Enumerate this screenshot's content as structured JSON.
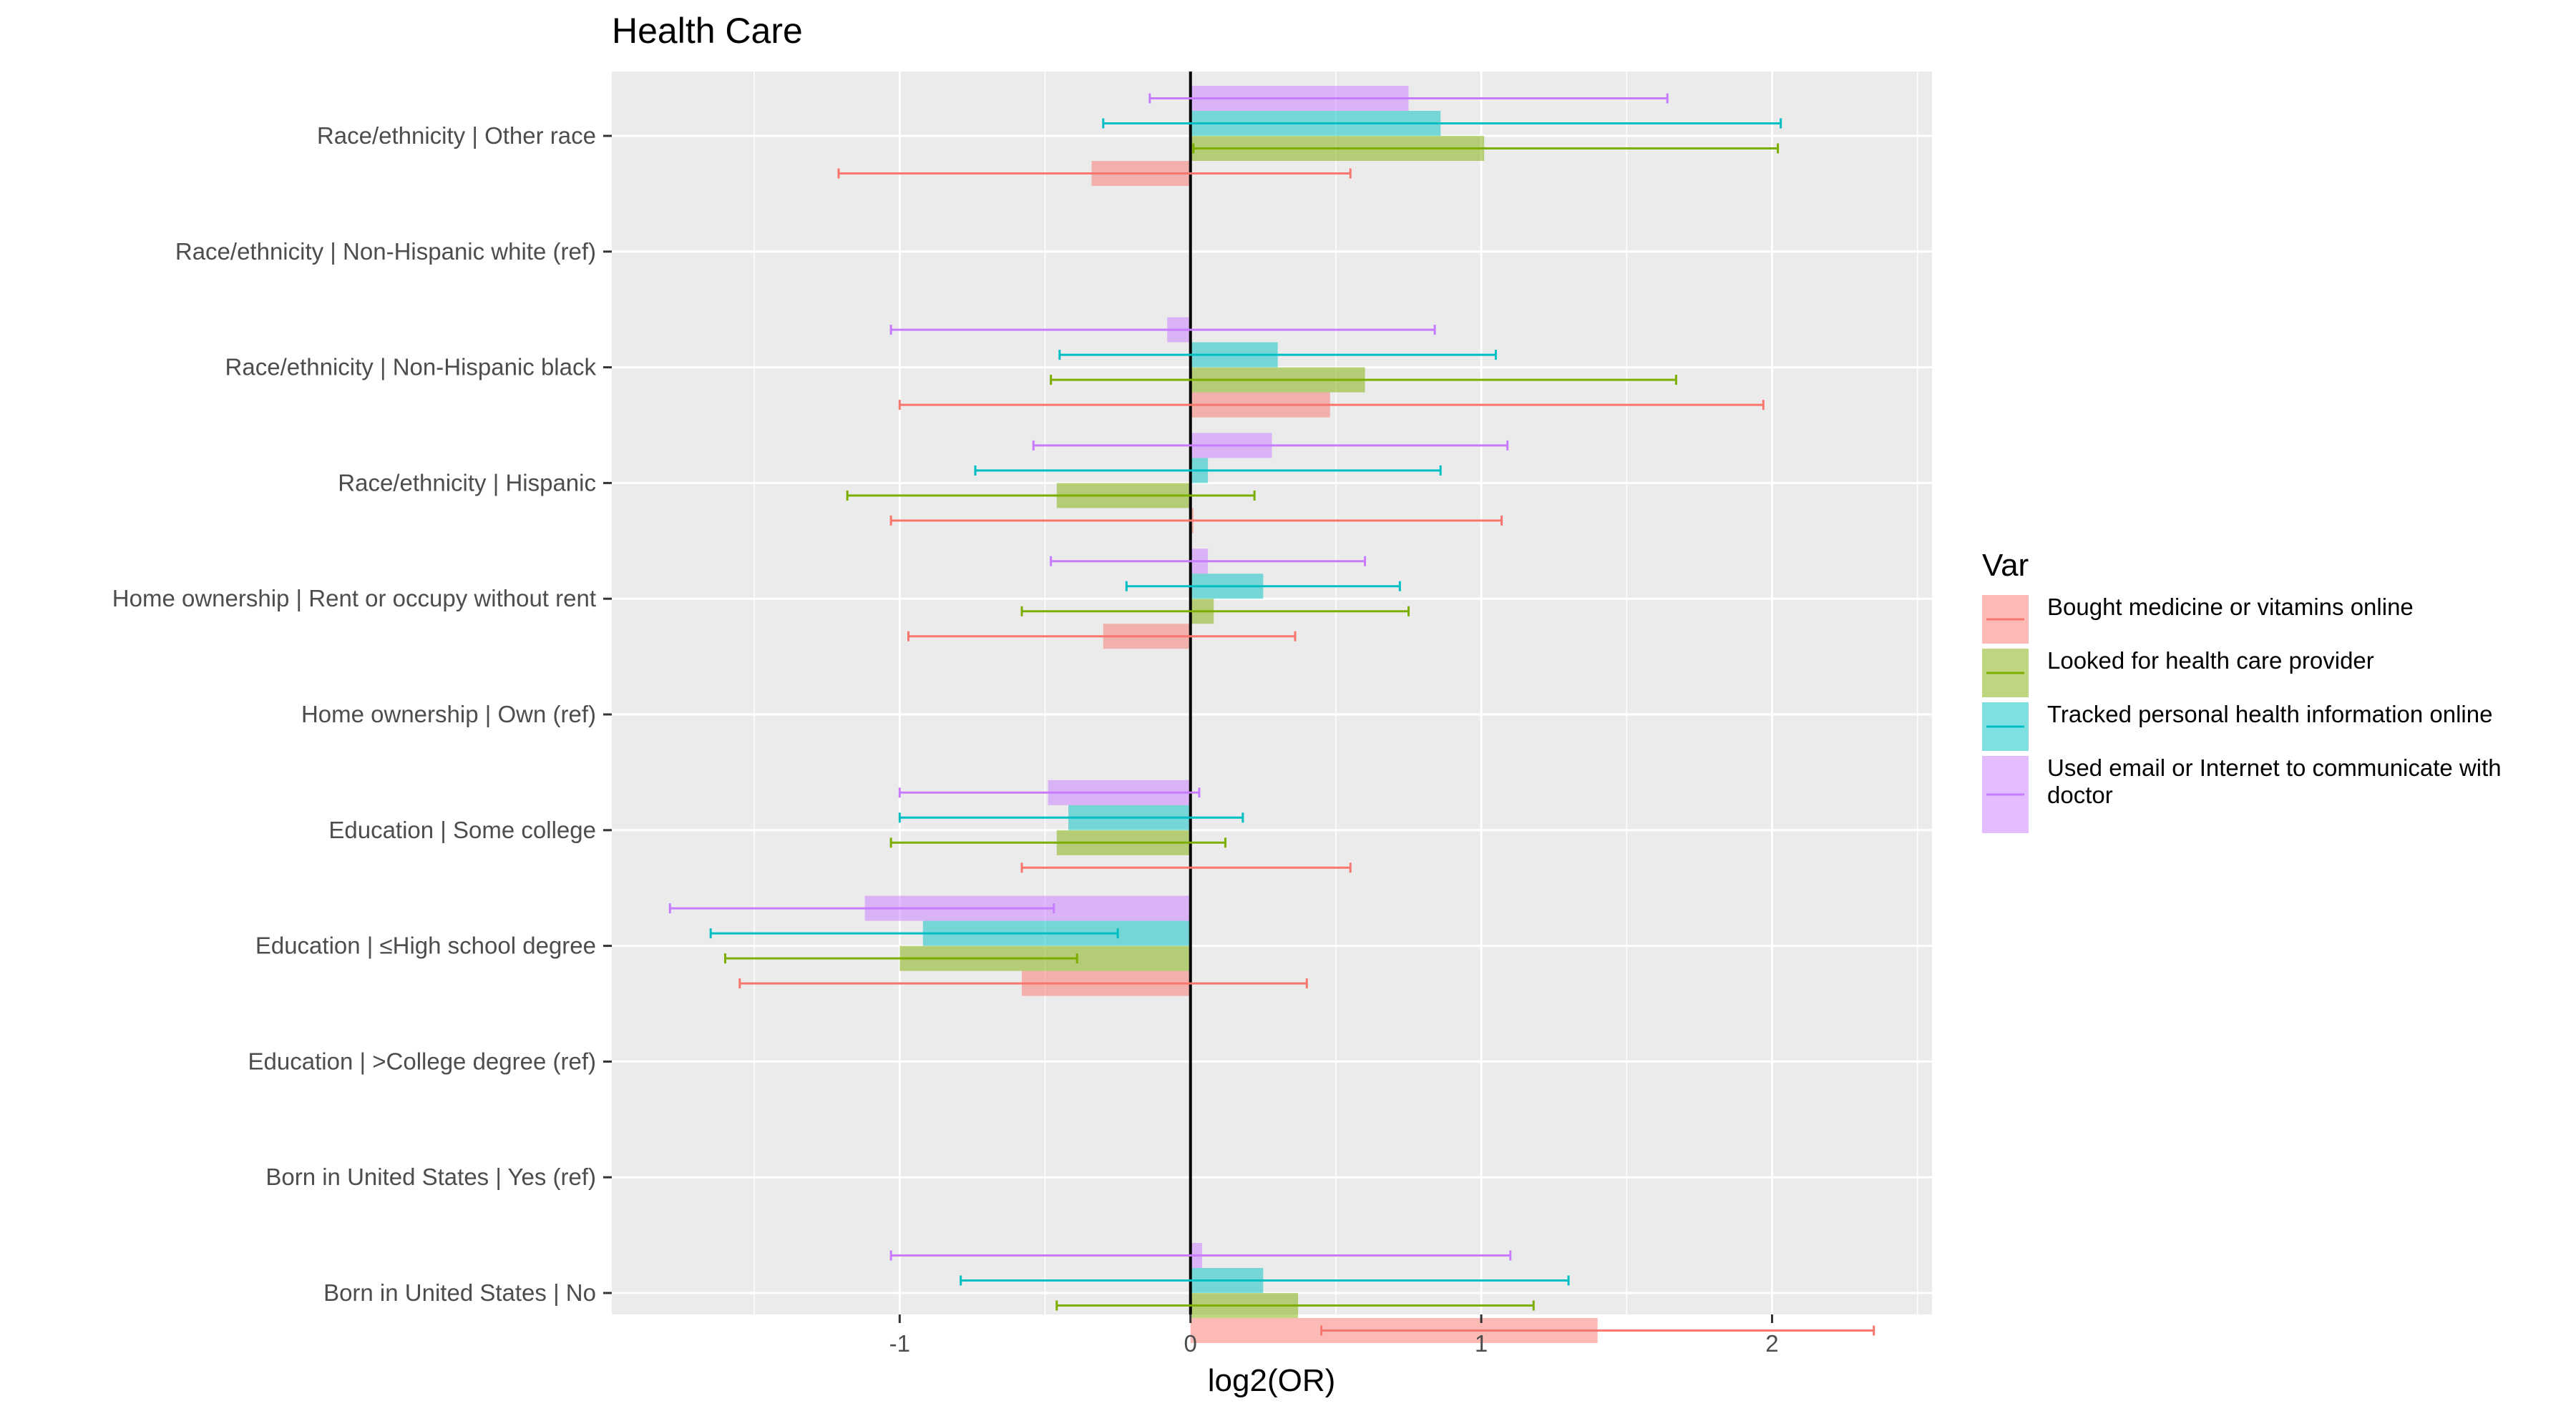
{
  "chart_data": {
    "type": "bar",
    "orientation": "horizontal",
    "title": "Health Care",
    "xlabel": "log2(OR)",
    "ylabel": "",
    "xlim": [
      -1.99,
      2.55
    ],
    "xticks": [
      "-1",
      "0",
      "1",
      "2"
    ],
    "grid": true,
    "legend_position": "right",
    "legend_title": "Var",
    "categories": [
      "Race/ethnicity | Other race",
      "Race/ethnicity | Non-Hispanic white (ref)",
      "Race/ethnicity | Non-Hispanic black",
      "Race/ethnicity | Hispanic",
      "Home ownership | Rent or occupy without rent",
      "Home ownership | Own (ref)",
      "Education | Some college",
      "Education | ≤High school degree",
      "Education | >College degree (ref)",
      "Born in United States | Yes (ref)",
      "Born in United States | No"
    ],
    "series": [
      {
        "name": "Bought medicine or vitamins online",
        "color": "#F8766D",
        "values": [
          -0.34,
          null,
          0.48,
          0.01,
          -0.3,
          null,
          0.0,
          -0.58,
          null,
          null,
          1.4
        ],
        "ci_low": [
          -1.21,
          null,
          -1.0,
          -1.03,
          -0.97,
          null,
          -0.58,
          -1.55,
          null,
          null,
          0.45
        ],
        "ci_high": [
          0.55,
          null,
          1.97,
          1.07,
          0.36,
          null,
          0.55,
          0.4,
          null,
          null,
          2.35
        ]
      },
      {
        "name": "Looked for health care provider",
        "color": "#7CAE00",
        "values": [
          1.01,
          null,
          0.6,
          -0.46,
          0.08,
          null,
          -0.46,
          -1.0,
          null,
          null,
          0.37
        ],
        "ci_low": [
          0.01,
          null,
          -0.48,
          -1.18,
          -0.58,
          null,
          -1.03,
          -1.6,
          null,
          null,
          -0.46
        ],
        "ci_high": [
          2.02,
          null,
          1.67,
          0.22,
          0.75,
          null,
          0.12,
          -0.39,
          null,
          null,
          1.18
        ]
      },
      {
        "name": "Tracked personal health information online",
        "color": "#00BFC4",
        "values": [
          0.86,
          null,
          0.3,
          0.06,
          0.25,
          null,
          -0.42,
          -0.92,
          null,
          null,
          0.25
        ],
        "ci_low": [
          -0.3,
          null,
          -0.45,
          -0.74,
          -0.22,
          null,
          -1.0,
          -1.65,
          null,
          null,
          -0.79
        ],
        "ci_high": [
          2.03,
          null,
          1.05,
          0.86,
          0.72,
          null,
          0.18,
          -0.25,
          null,
          null,
          1.3
        ]
      },
      {
        "name": "Used email or Internet to communicate with doctor",
        "color": "#C77CFF",
        "values": [
          0.75,
          null,
          -0.08,
          0.28,
          0.06,
          null,
          -0.49,
          -1.12,
          null,
          null,
          0.04
        ],
        "ci_low": [
          -0.14,
          null,
          -1.03,
          -0.54,
          -0.48,
          null,
          -1.0,
          -1.79,
          null,
          null,
          -1.03
        ],
        "ci_high": [
          1.64,
          null,
          0.84,
          1.09,
          0.6,
          null,
          0.03,
          -0.47,
          null,
          null,
          1.1
        ]
      }
    ]
  }
}
